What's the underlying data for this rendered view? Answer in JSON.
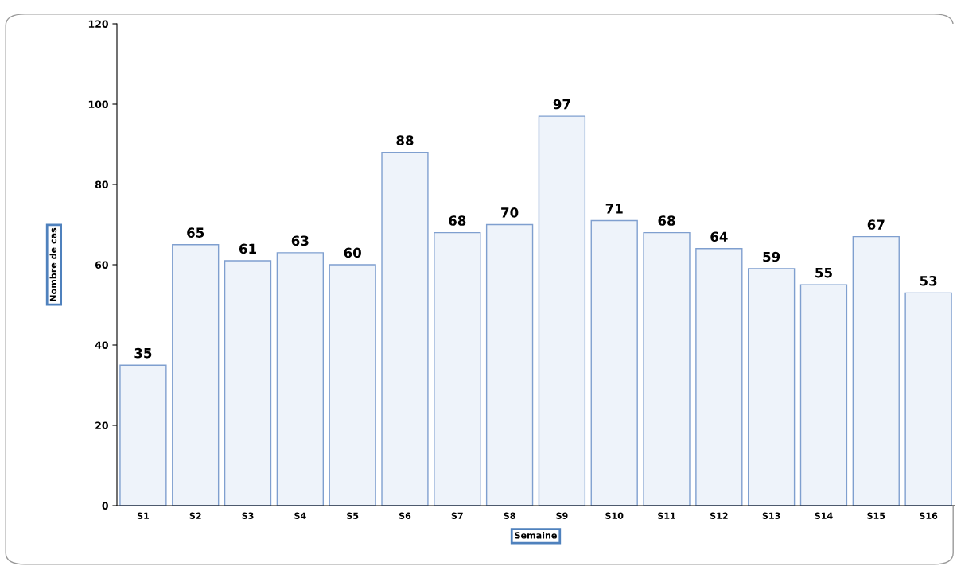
{
  "chart_data": {
    "type": "bar",
    "xlabel": "Semaine",
    "ylabel": "Nombre de cas",
    "categories": [
      "S1",
      "S2",
      "S3",
      "S4",
      "S5",
      "S6",
      "S7",
      "S8",
      "S9",
      "S10",
      "S11",
      "S12",
      "S13",
      "S14",
      "S15",
      "S16"
    ],
    "values": [
      35,
      65,
      61,
      63,
      60,
      88,
      68,
      70,
      97,
      71,
      68,
      64,
      59,
      55,
      67,
      53
    ],
    "color": "#eef3fa",
    "ylim": [
      0,
      120
    ],
    "yticks": [
      0,
      20,
      40,
      60,
      80,
      100,
      120
    ],
    "grid": false,
    "data_labels": true
  }
}
